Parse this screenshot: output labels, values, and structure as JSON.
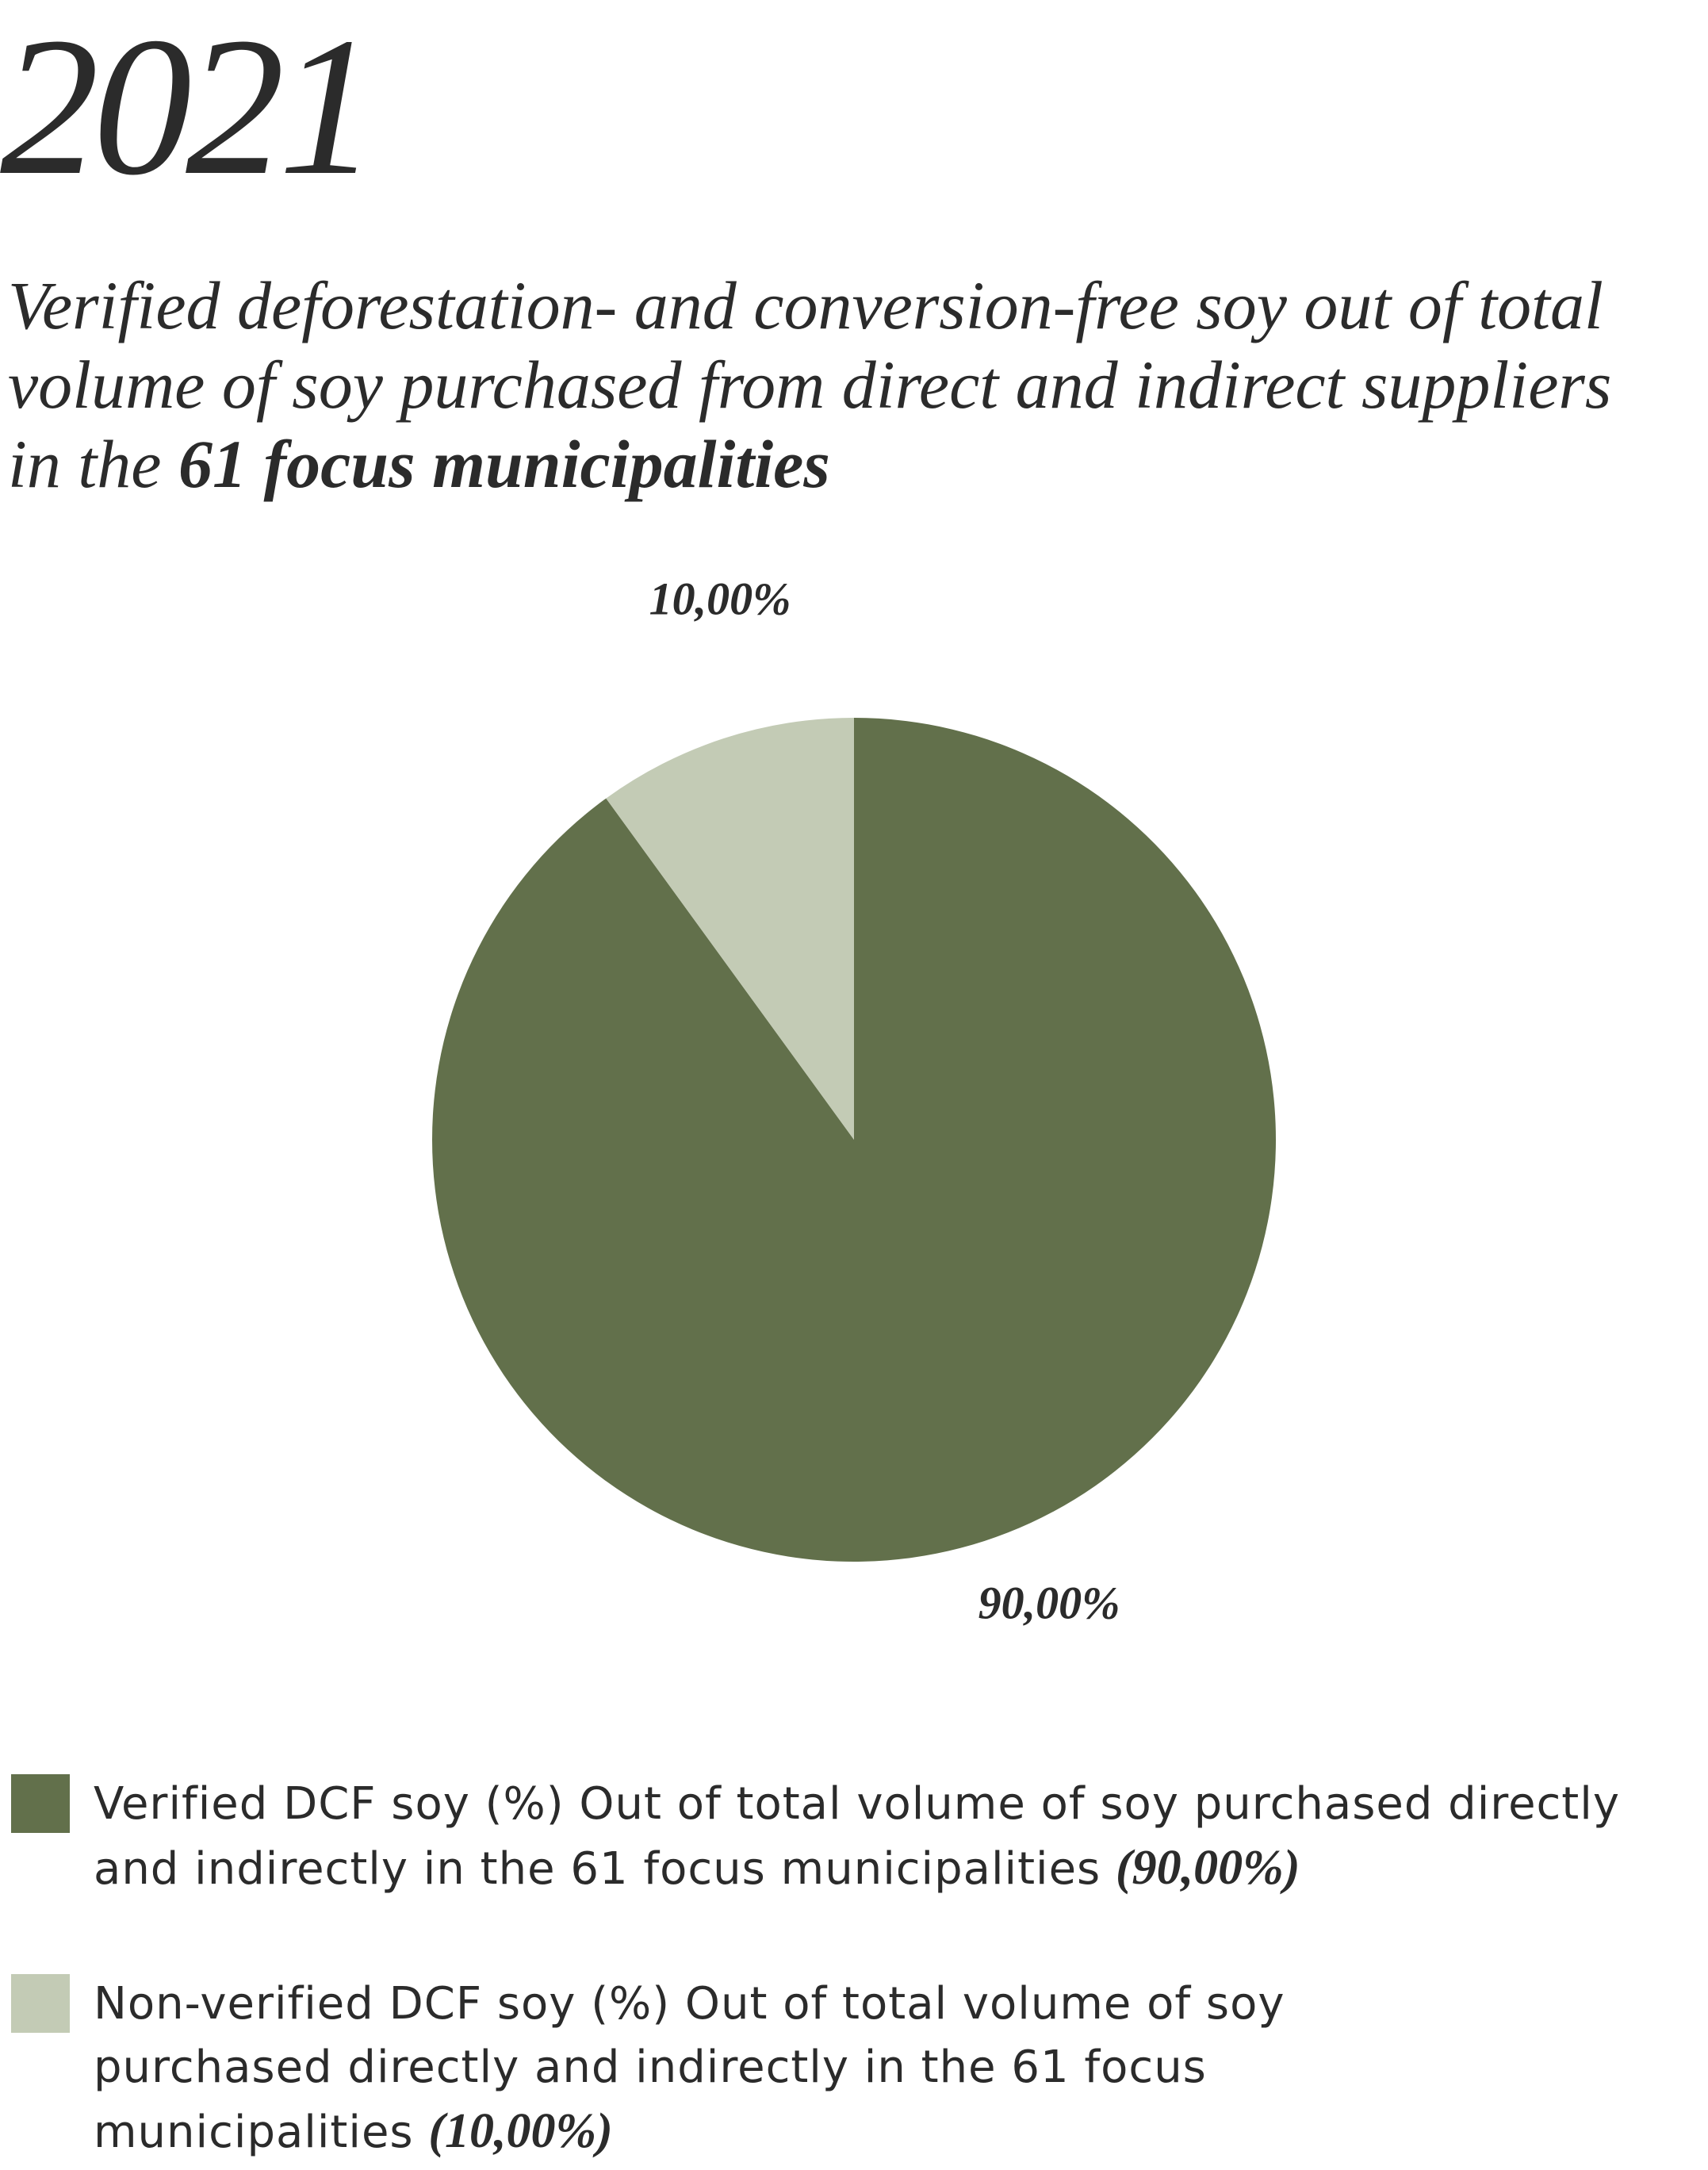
{
  "chart_data": {
    "type": "pie",
    "title": "2021",
    "subtitle": "Verified deforestation- and conversion-free soy out of total volume of soy purchased from direct and indirect suppliers in the",
    "subtitle_bold": "61 focus municipalities",
    "categories": [
      "Verified DCF soy (%) Out of total volume of soy purchased directly and indirectly in the 61 focus municipalities",
      "Non-verified DCF soy (%) Out of total volume of soy purchased directly and indirectly in the 61 focus municipalities"
    ],
    "values": [
      90,
      10
    ],
    "value_labels": [
      "90,00%",
      "10,00%"
    ],
    "legend_value_labels": [
      "(90,00%)",
      "(10,00%)"
    ],
    "colors": [
      "#62704b",
      "#c3cbb5"
    ]
  }
}
